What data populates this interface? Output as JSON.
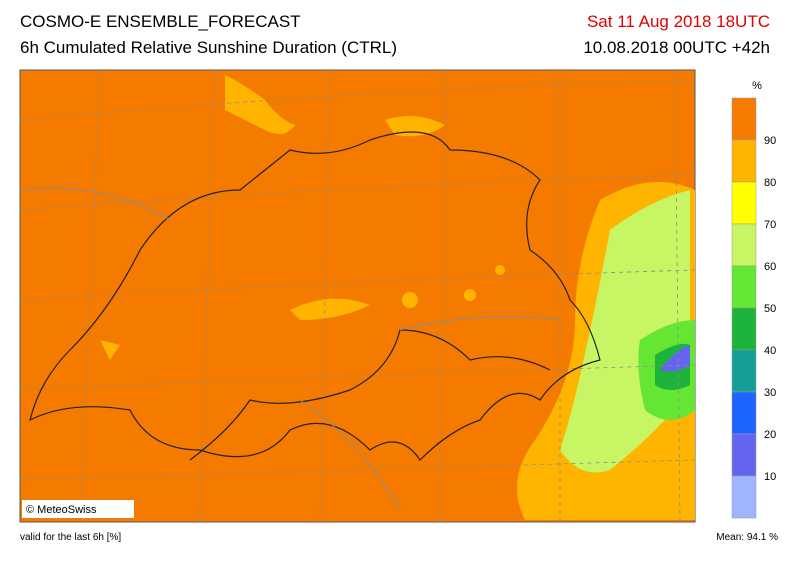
{
  "header": {
    "title": "COSMO-E ENSEMBLE_FORECAST",
    "subtitle": "6h Cumulated Relative Sunshine Duration (CTRL)",
    "valid_time": "Sat 11 Aug 2018 18UTC",
    "run": "10.08.2018 00UTC +42h"
  },
  "colorbar": {
    "unit": "%",
    "ticks": [
      90,
      80,
      70,
      60,
      50,
      40,
      30,
      20,
      10
    ],
    "colors": [
      "#f57a00",
      "#ffb400",
      "#ffff00",
      "#c8f564",
      "#64e632",
      "#1eb43c",
      "#14a096",
      "#1e64ff",
      "#6464f0",
      "#a0b4ff"
    ]
  },
  "copyright": "© MeteoSwiss",
  "footer": {
    "validity": "valid for the last 6h [%]",
    "mean": "Mean:  94.1 %"
  }
}
